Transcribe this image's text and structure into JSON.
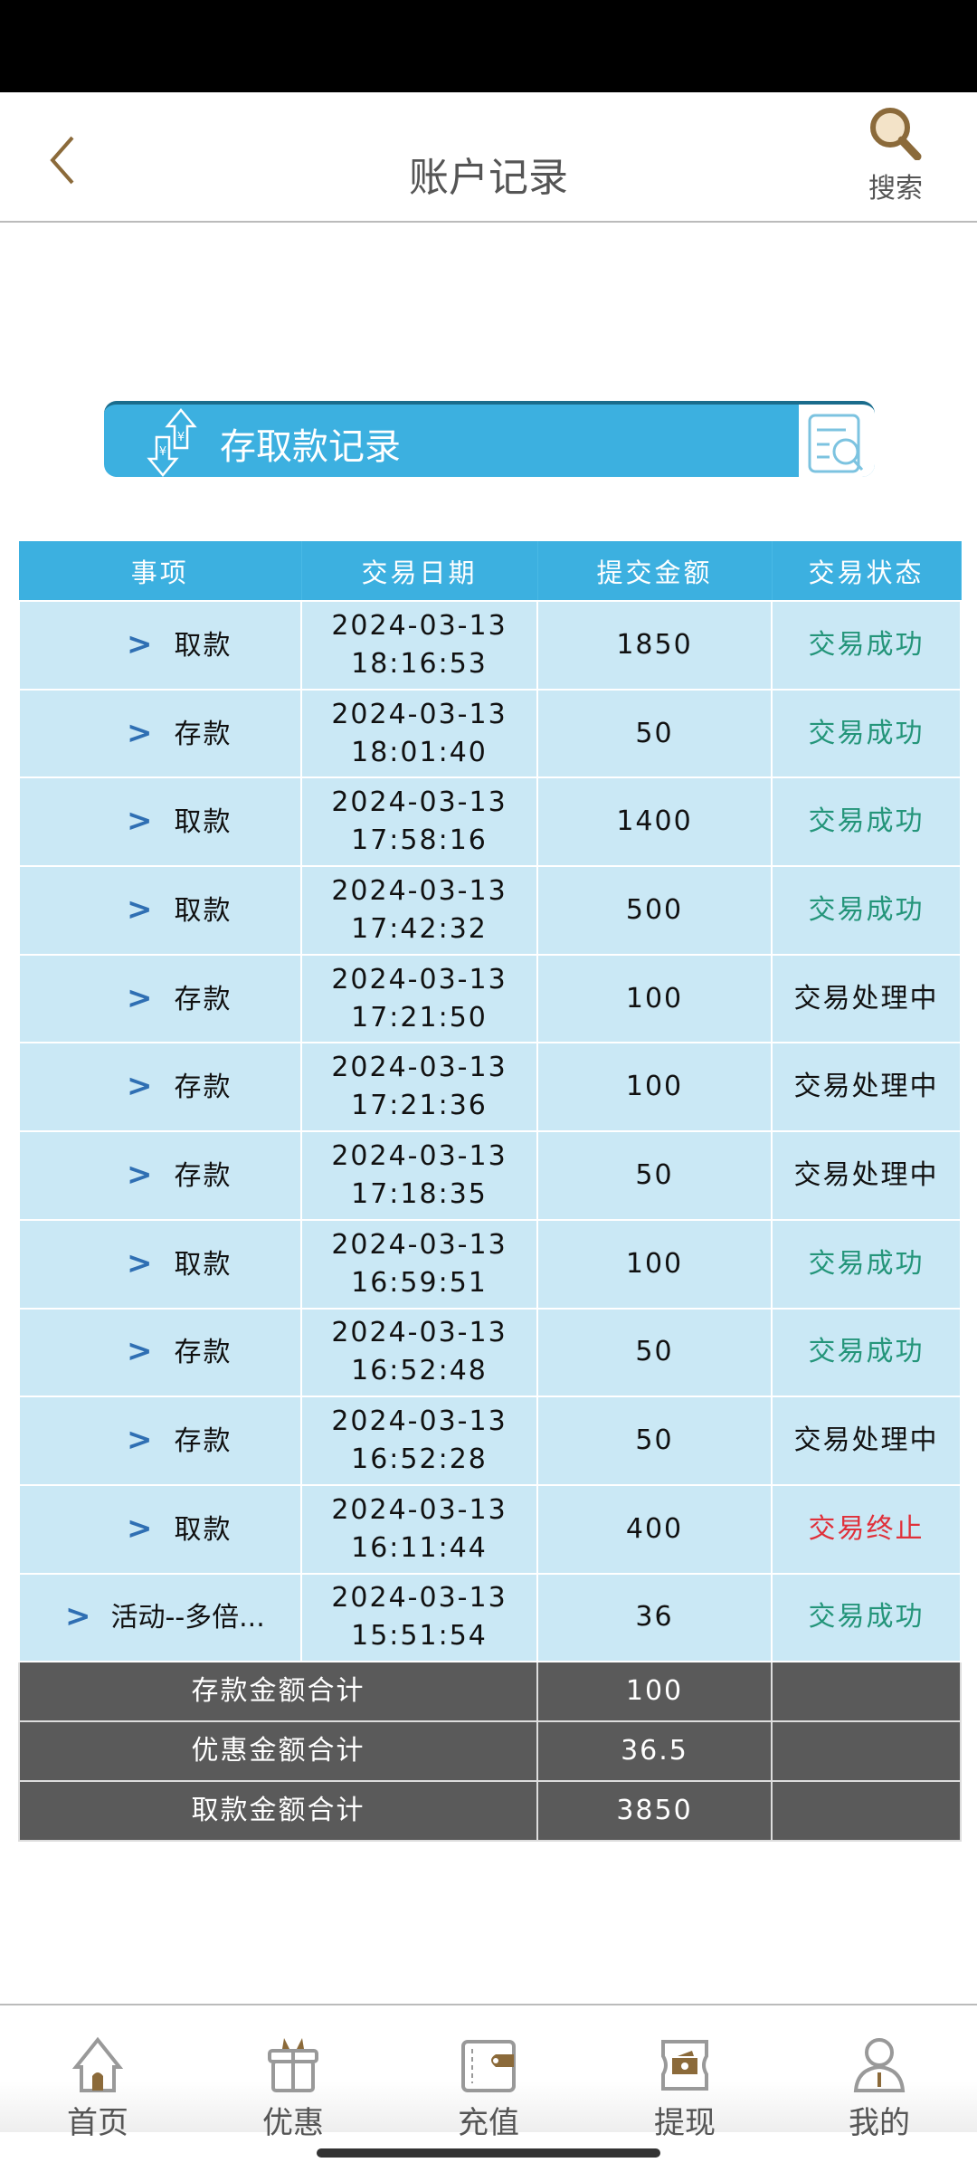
{
  "header": {
    "title": "账户记录",
    "search_label": "搜索"
  },
  "banner": {
    "title": "存取款记录"
  },
  "table": {
    "columns": [
      "事项",
      "交易日期",
      "提交金额",
      "交易状态"
    ],
    "rows": [
      {
        "item": "取款",
        "date": "2024-03-13",
        "time": "18:16:53",
        "amount": "1850",
        "status": "交易成功",
        "state": "ok"
      },
      {
        "item": "存款",
        "date": "2024-03-13",
        "time": "18:01:40",
        "amount": "50",
        "status": "交易成功",
        "state": "ok"
      },
      {
        "item": "取款",
        "date": "2024-03-13",
        "time": "17:58:16",
        "amount": "1400",
        "status": "交易成功",
        "state": "ok"
      },
      {
        "item": "取款",
        "date": "2024-03-13",
        "time": "17:42:32",
        "amount": "500",
        "status": "交易成功",
        "state": "ok"
      },
      {
        "item": "存款",
        "date": "2024-03-13",
        "time": "17:21:50",
        "amount": "100",
        "status": "交易处理中",
        "state": "proc"
      },
      {
        "item": "存款",
        "date": "2024-03-13",
        "time": "17:21:36",
        "amount": "100",
        "status": "交易处理中",
        "state": "proc"
      },
      {
        "item": "存款",
        "date": "2024-03-13",
        "time": "17:18:35",
        "amount": "50",
        "status": "交易处理中",
        "state": "proc"
      },
      {
        "item": "取款",
        "date": "2024-03-13",
        "time": "16:59:51",
        "amount": "100",
        "status": "交易成功",
        "state": "ok"
      },
      {
        "item": "存款",
        "date": "2024-03-13",
        "time": "16:52:48",
        "amount": "50",
        "status": "交易成功",
        "state": "ok"
      },
      {
        "item": "存款",
        "date": "2024-03-13",
        "time": "16:52:28",
        "amount": "50",
        "status": "交易处理中",
        "state": "proc"
      },
      {
        "item": "取款",
        "date": "2024-03-13",
        "time": "16:11:44",
        "amount": "400",
        "status": "交易终止",
        "state": "stop"
      },
      {
        "item": "活动--多倍...",
        "date": "2024-03-13",
        "time": "15:51:54",
        "amount": "36",
        "status": "交易成功",
        "state": "ok"
      }
    ],
    "summary": [
      {
        "label": "存款金额合计",
        "value": "100"
      },
      {
        "label": "优惠金额合计",
        "value": "36.5"
      },
      {
        "label": "取款金额合计",
        "value": "3850"
      }
    ]
  },
  "colors": {
    "accent": "#3cb0e0",
    "row_bg": "#cae8f5",
    "success": "#24957a",
    "terminated": "#e0303a",
    "brand": "#8b6a3a",
    "summary_bg": "#5a5a5a"
  },
  "nav": [
    {
      "label": "首页",
      "icon": "home-icon"
    },
    {
      "label": "优惠",
      "icon": "gift-icon"
    },
    {
      "label": "充值",
      "icon": "wallet-icon"
    },
    {
      "label": "提现",
      "icon": "cash-icon"
    },
    {
      "label": "我的",
      "icon": "user-icon"
    }
  ]
}
